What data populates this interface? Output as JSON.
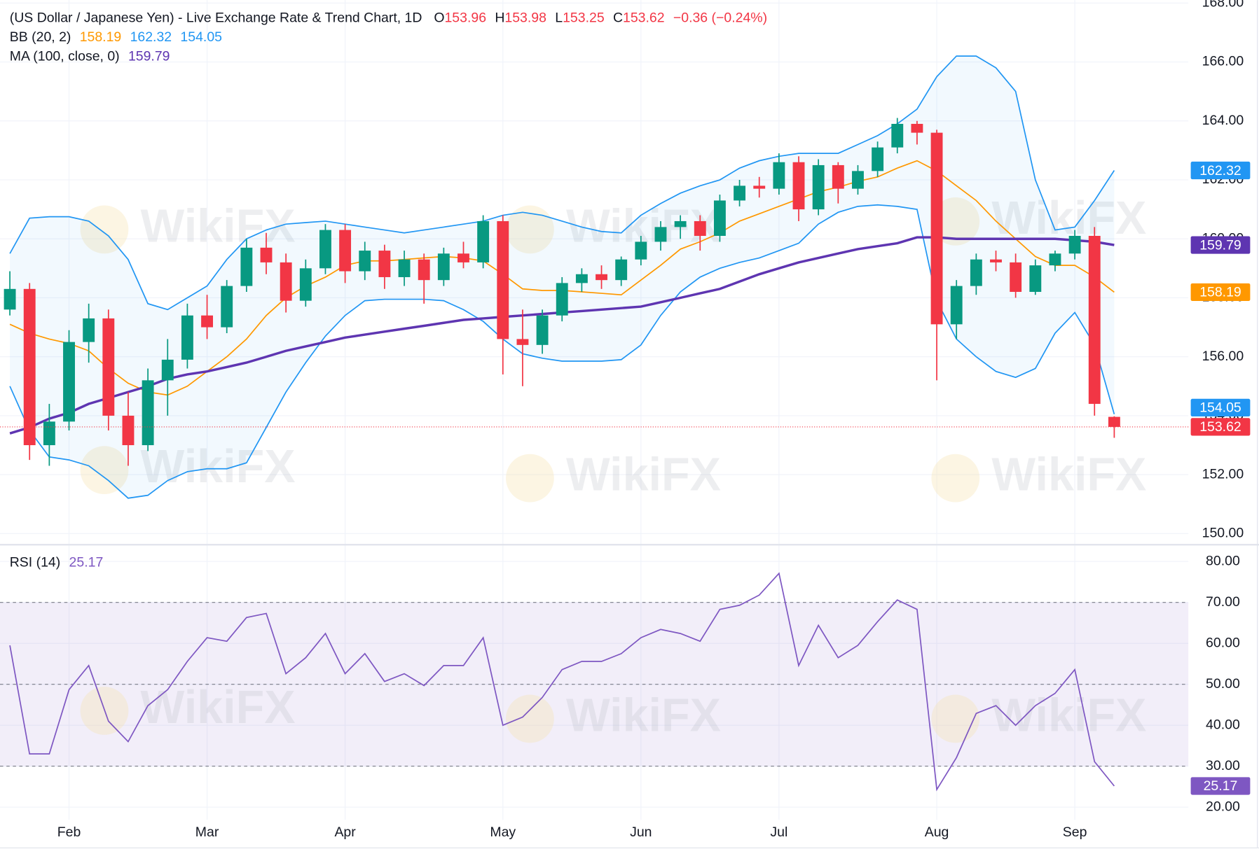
{
  "chart_data": [
    {
      "type": "candlestick",
      "title": "(US Dollar / Japanese Yen) - Live Exchange Rate & Trend Chart, 1D",
      "ohlc_labels": [
        "O",
        "H",
        "L",
        "C"
      ],
      "change": "−0.36 (−0.24%)",
      "categories": [
        null,
        null,
        null,
        "Feb",
        null,
        null,
        null,
        null,
        null,
        null,
        "Mar",
        null,
        null,
        null,
        null,
        null,
        null,
        "Apr",
        null,
        null,
        null,
        null,
        null,
        null,
        null,
        "May",
        null,
        null,
        null,
        null,
        null,
        null,
        "Jun",
        null,
        null,
        null,
        null,
        null,
        null,
        "Jul",
        null,
        null,
        null,
        null,
        null,
        null,
        null,
        "Aug",
        null,
        null,
        null,
        null,
        null,
        null,
        "Sep",
        null,
        null
      ],
      "open": [
        157.6,
        158.3,
        153.0,
        153.8,
        156.5,
        157.3,
        154.0,
        153.0,
        155.2,
        155.9,
        157.4,
        157.0,
        158.4,
        159.7,
        159.2,
        157.9,
        159.0,
        160.3,
        158.9,
        159.6,
        158.7,
        159.3,
        158.6,
        159.5,
        159.2,
        160.6,
        156.6,
        156.4,
        157.4,
        158.5,
        158.8,
        158.6,
        159.3,
        159.9,
        160.4,
        160.6,
        160.1,
        161.3,
        161.8,
        161.7,
        162.6,
        161.0,
        162.5,
        161.7,
        162.3,
        163.1,
        163.9,
        163.6,
        157.1,
        158.4,
        159.3,
        159.2,
        158.2,
        159.1,
        159.5,
        160.1,
        153.96
      ],
      "high": [
        158.9,
        158.5,
        154.4,
        156.9,
        157.8,
        157.6,
        154.8,
        155.6,
        156.6,
        157.8,
        158.1,
        158.6,
        160.0,
        160.2,
        159.5,
        159.3,
        160.5,
        160.5,
        159.9,
        159.8,
        159.6,
        159.5,
        159.7,
        159.9,
        160.8,
        160.8,
        157.6,
        157.6,
        158.7,
        159.0,
        159.1,
        159.4,
        160.1,
        160.6,
        160.8,
        160.8,
        161.5,
        162.0,
        162.1,
        162.9,
        162.8,
        162.7,
        162.6,
        162.5,
        163.3,
        164.1,
        164.0,
        163.7,
        158.6,
        159.5,
        159.6,
        159.5,
        159.3,
        159.6,
        160.3,
        160.4,
        153.98
      ],
      "low": [
        157.4,
        152.5,
        152.3,
        153.5,
        155.8,
        153.5,
        152.3,
        152.8,
        154.0,
        155.6,
        156.6,
        156.8,
        158.2,
        158.8,
        157.5,
        157.7,
        158.8,
        158.5,
        158.6,
        158.3,
        158.4,
        157.8,
        158.4,
        159.0,
        159.0,
        155.4,
        155.0,
        156.1,
        157.2,
        158.2,
        158.3,
        158.4,
        159.1,
        159.6,
        160.0,
        159.6,
        159.9,
        161.1,
        161.4,
        161.5,
        160.6,
        160.8,
        161.2,
        161.5,
        162.1,
        162.9,
        163.2,
        155.2,
        156.6,
        158.1,
        158.9,
        158.0,
        158.1,
        158.9,
        159.3,
        154.0,
        153.25
      ],
      "close": [
        158.3,
        153.0,
        153.8,
        156.5,
        157.3,
        154.0,
        153.0,
        155.2,
        155.9,
        157.4,
        157.0,
        158.4,
        159.7,
        159.2,
        157.9,
        159.0,
        160.3,
        158.9,
        159.6,
        158.7,
        159.3,
        158.6,
        159.5,
        159.2,
        160.6,
        156.6,
        156.4,
        157.4,
        158.5,
        158.8,
        158.6,
        159.3,
        159.9,
        160.4,
        160.6,
        160.1,
        161.3,
        161.8,
        161.7,
        162.6,
        161.0,
        162.5,
        161.7,
        162.3,
        163.1,
        163.9,
        163.6,
        157.1,
        158.4,
        159.3,
        159.2,
        158.2,
        159.1,
        159.5,
        160.1,
        154.4,
        153.62
      ],
      "up_color": "#089981",
      "down_color": "#f23645",
      "indicators": [
        {
          "name": "BB (20, 2)",
          "fill": "#2196f3",
          "lines": [
            {
              "color": "#ff9800",
              "values": [
                157.1,
                156.8,
                156.6,
                156.45,
                156.2,
                155.6,
                155.1,
                154.8,
                154.7,
                155.0,
                155.5,
                156.0,
                156.6,
                157.4,
                158.0,
                158.4,
                158.7,
                159.1,
                159.25,
                159.25,
                159.3,
                159.35,
                159.4,
                159.35,
                159.25,
                158.8,
                158.3,
                158.25,
                158.25,
                158.2,
                158.15,
                158.1,
                158.6,
                159.1,
                159.65,
                159.9,
                160.2,
                160.6,
                160.85,
                161.1,
                161.35,
                161.6,
                161.75,
                161.95,
                162.1,
                162.4,
                162.65,
                162.3,
                161.8,
                161.3,
                160.6,
                160.0,
                159.4,
                159.1,
                159.1,
                158.7,
                158.19
              ]
            },
            {
              "color": "#2196f3",
              "values": [
                159.5,
                160.7,
                160.75,
                160.75,
                160.6,
                160.1,
                159.3,
                157.8,
                157.6,
                158.0,
                158.4,
                159.3,
                160.0,
                160.3,
                160.5,
                160.55,
                160.6,
                160.5,
                160.4,
                160.3,
                160.2,
                160.3,
                160.4,
                160.5,
                160.6,
                160.8,
                160.9,
                160.8,
                160.6,
                160.4,
                160.25,
                160.2,
                160.8,
                161.2,
                161.55,
                161.8,
                162.0,
                162.4,
                162.65,
                162.8,
                162.9,
                162.9,
                162.9,
                163.2,
                163.5,
                163.9,
                164.4,
                165.5,
                166.2,
                166.2,
                165.8,
                165.0,
                162.0,
                160.3,
                160.4,
                161.3,
                162.32
              ]
            },
            {
              "color": "#2196f3",
              "values": [
                155.0,
                153.5,
                152.6,
                152.5,
                152.3,
                151.8,
                151.2,
                151.3,
                151.8,
                152.1,
                152.2,
                152.2,
                152.4,
                153.6,
                154.8,
                155.8,
                156.7,
                157.4,
                157.9,
                157.95,
                157.95,
                157.95,
                157.9,
                157.6,
                157.2,
                156.6,
                156.1,
                155.95,
                155.85,
                155.85,
                155.85,
                155.9,
                156.4,
                157.4,
                158.2,
                158.7,
                159.0,
                159.2,
                159.35,
                159.6,
                159.85,
                160.5,
                160.9,
                161.1,
                161.15,
                161.1,
                161.0,
                157.9,
                156.6,
                156.0,
                155.5,
                155.3,
                155.6,
                156.8,
                157.5,
                156.4,
                154.05
              ]
            }
          ]
        },
        {
          "name": "MA (100, close, 0)",
          "lines": [
            {
              "color": "#5e35b1",
              "values": [
                153.4,
                153.6,
                153.9,
                154.1,
                154.4,
                154.6,
                154.8,
                155.0,
                155.25,
                155.4,
                155.5,
                155.65,
                155.8,
                156.0,
                156.2,
                156.35,
                156.5,
                156.65,
                156.75,
                156.85,
                156.95,
                157.05,
                157.15,
                157.25,
                157.3,
                157.35,
                157.4,
                157.45,
                157.5,
                157.55,
                157.6,
                157.65,
                157.7,
                157.85,
                158.0,
                158.15,
                158.3,
                158.55,
                158.8,
                159.0,
                159.2,
                159.35,
                159.5,
                159.65,
                159.75,
                159.85,
                160.05,
                160.05,
                160.0,
                160.0,
                160.0,
                160.0,
                160.0,
                160.0,
                159.95,
                159.9,
                159.79
              ]
            }
          ]
        }
      ],
      "ylim": [
        149.65,
        168.1
      ],
      "yticks": [
        {
          "value": 150,
          "label": "150.00"
        },
        {
          "value": 152,
          "label": "152.00"
        },
        {
          "value": 154,
          "label": "154.00"
        },
        {
          "value": 156,
          "label": "156.00"
        },
        {
          "value": 158,
          "label": "158.00"
        },
        {
          "value": 160,
          "label": "160.00"
        },
        {
          "value": 162,
          "label": "162.00"
        },
        {
          "value": 164,
          "label": "164.00"
        },
        {
          "value": 166,
          "label": "166.00"
        },
        {
          "value": 168,
          "label": "168.00"
        }
      ],
      "grid": true
    },
    {
      "type": "line",
      "series": [
        {
          "name": "RSI (14)",
          "color": "#7e57c2",
          "values": [
            59.5,
            33,
            33,
            48.7,
            54.6,
            41,
            36,
            44.8,
            48.7,
            55.6,
            61.4,
            60.5,
            66.3,
            67.3,
            52.6,
            56.5,
            62.4,
            52.6,
            57.5,
            50.7,
            52.6,
            49.7,
            54.6,
            54.6,
            61.4,
            40,
            42,
            46.8,
            53.6,
            55.6,
            55.6,
            57.5,
            61.4,
            63.4,
            62.4,
            60.5,
            68.3,
            69.3,
            71.8,
            77.1,
            54.6,
            64.4,
            56.5,
            59.5,
            65.3,
            70.6,
            68.3,
            24.3,
            32.1,
            42.9,
            44.8,
            40,
            44.8,
            47.8,
            53.6,
            31.1,
            25.17
          ]
        }
      ],
      "ylim": [
        16.9,
        83.9
      ],
      "yticks": [
        {
          "value": 20,
          "label": "20.00"
        },
        {
          "value": 30,
          "label": "30.00"
        },
        {
          "value": 40,
          "label": "40.00"
        },
        {
          "value": 50,
          "label": "50.00"
        },
        {
          "value": 60,
          "label": "60.00"
        },
        {
          "value": 70,
          "label": "70.00"
        },
        {
          "value": 80,
          "label": "80.00"
        }
      ],
      "band": [
        30,
        70
      ],
      "levels": [
        30,
        50,
        70
      ],
      "band_color": "#7e57c2",
      "grid": true
    }
  ],
  "watermark": "WikiFX"
}
